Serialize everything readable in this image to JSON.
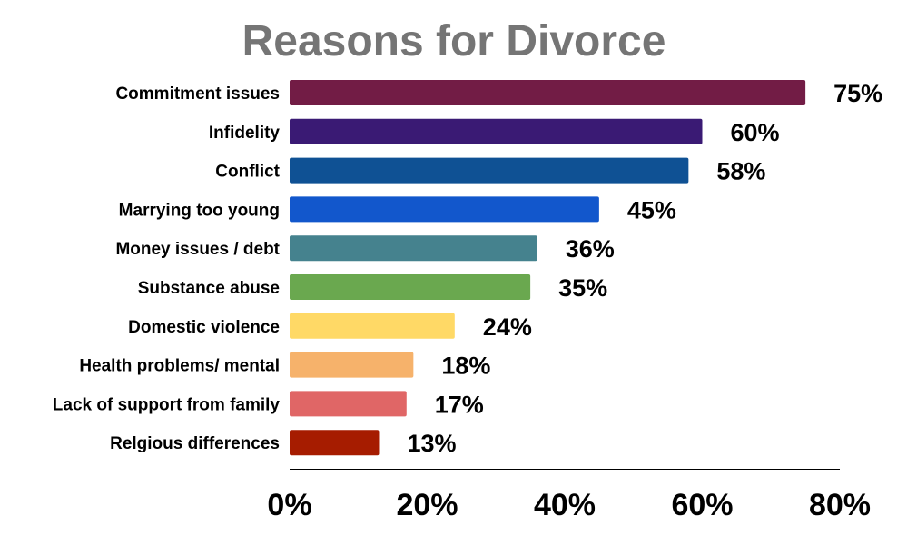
{
  "chart_data": {
    "type": "bar",
    "orientation": "horizontal",
    "title": "Reasons for Divorce",
    "xlabel": "",
    "ylabel": "",
    "categories": [
      "Commitment issues",
      "Infidelity",
      "Conflict",
      "Marrying too young",
      "Money issues / debt",
      "Substance abuse",
      "Domestic violence",
      "Health problems/ mental",
      "Lack of support from family",
      "Relgious differences"
    ],
    "values": [
      75,
      60,
      58,
      45,
      36,
      35,
      24,
      18,
      17,
      13
    ],
    "value_labels": [
      "75%",
      "60%",
      "58%",
      "45%",
      "36%",
      "35%",
      "24%",
      "18%",
      "17%",
      "13%"
    ],
    "colors": [
      "#721c45",
      "#3a1a74",
      "#0f5194",
      "#1257cc",
      "#45828e",
      "#6aa84f",
      "#ffd966",
      "#f6b26b",
      "#e06666",
      "#a61c00"
    ],
    "xlim": [
      0,
      80
    ],
    "xticks": [
      0,
      20,
      40,
      60,
      80
    ],
    "xtick_labels": [
      "0%",
      "20%",
      "40%",
      "60%",
      "80%"
    ],
    "grid": false,
    "legend": "none"
  }
}
